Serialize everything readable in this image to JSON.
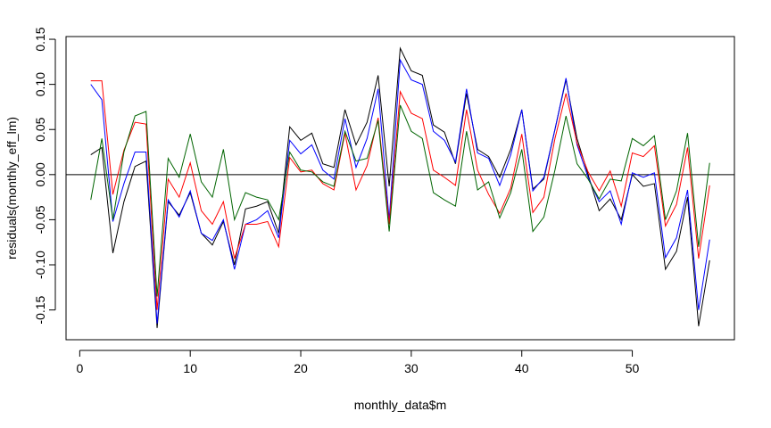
{
  "chart_data": {
    "type": "line",
    "xlabel": "monthly_data$m",
    "ylabel": "residuals(monthly_eff_lm)",
    "xlim": [
      -1.24,
      59.24
    ],
    "ylim": [
      -0.183,
      0.153
    ],
    "xticks": [
      0,
      10,
      20,
      30,
      40,
      50
    ],
    "yticks": [
      -0.15,
      -0.1,
      -0.05,
      0.0,
      0.05,
      0.1,
      0.15
    ],
    "xtick_labels": [
      "0",
      "10",
      "20",
      "30",
      "40",
      "50"
    ],
    "ytick_labels": [
      "-0.15",
      "-0.10",
      "-0.05",
      "0.00",
      "0.05",
      "0.10",
      "0.15"
    ],
    "reference_line": 0,
    "x": [
      1,
      2,
      3,
      4,
      5,
      6,
      7,
      8,
      9,
      10,
      11,
      12,
      13,
      14,
      15,
      16,
      17,
      18,
      19,
      20,
      21,
      22,
      23,
      24,
      25,
      26,
      27,
      28,
      29,
      30,
      31,
      32,
      33,
      34,
      35,
      36,
      37,
      38,
      39,
      40,
      41,
      42,
      43,
      44,
      45,
      46,
      47,
      48,
      49,
      50,
      51,
      52,
      53,
      54,
      55,
      56,
      57
    ],
    "series": [
      {
        "color": "#000000",
        "values": [
          0.022,
          0.03,
          -0.087,
          -0.03,
          0.009,
          0.015,
          -0.17,
          -0.03,
          -0.045,
          -0.02,
          -0.065,
          -0.078,
          -0.052,
          -0.1,
          -0.038,
          -0.035,
          -0.03,
          -0.065,
          0.053,
          0.038,
          0.046,
          0.012,
          0.008,
          0.072,
          0.033,
          0.058,
          0.11,
          -0.013,
          0.14,
          0.115,
          0.11,
          0.055,
          0.047,
          0.012,
          0.09,
          0.028,
          0.02,
          -0.003,
          0.028,
          0.072,
          -0.016,
          -0.005,
          0.05,
          0.105,
          0.04,
          0.0,
          -0.04,
          -0.027,
          -0.05,
          0.0,
          -0.013,
          -0.01,
          -0.105,
          -0.085,
          -0.025,
          -0.168,
          -0.095
        ]
      },
      {
        "color": "#0000ff",
        "values": [
          0.1,
          0.083,
          -0.052,
          -0.01,
          0.025,
          0.025,
          -0.165,
          -0.028,
          -0.047,
          -0.018,
          -0.065,
          -0.073,
          -0.05,
          -0.105,
          -0.055,
          -0.05,
          -0.04,
          -0.07,
          0.038,
          0.023,
          0.033,
          0.005,
          -0.005,
          0.062,
          0.008,
          0.04,
          0.095,
          -0.05,
          0.127,
          0.105,
          0.1,
          0.048,
          0.038,
          0.014,
          0.095,
          0.024,
          0.018,
          -0.012,
          0.022,
          0.072,
          -0.018,
          -0.003,
          0.05,
          0.107,
          0.033,
          -0.003,
          -0.03,
          -0.018,
          -0.055,
          0.002,
          -0.003,
          0.002,
          -0.092,
          -0.07,
          -0.017,
          -0.15,
          -0.072
        ]
      },
      {
        "color": "#ff0000",
        "values": [
          0.104,
          0.104,
          -0.022,
          0.027,
          0.058,
          0.056,
          -0.15,
          -0.005,
          -0.025,
          0.013,
          -0.04,
          -0.055,
          -0.03,
          -0.093,
          -0.055,
          -0.055,
          -0.052,
          -0.08,
          0.019,
          0.003,
          0.005,
          -0.01,
          -0.017,
          0.046,
          -0.017,
          0.01,
          0.063,
          -0.055,
          0.092,
          0.068,
          0.062,
          0.005,
          -0.003,
          -0.012,
          0.072,
          0.005,
          -0.022,
          -0.043,
          -0.015,
          0.045,
          -0.042,
          -0.025,
          0.04,
          0.09,
          0.035,
          0.003,
          -0.018,
          0.004,
          -0.035,
          0.024,
          0.02,
          0.032,
          -0.057,
          -0.033,
          0.03,
          -0.093,
          -0.012
        ]
      },
      {
        "color": "#006400",
        "values": [
          -0.028,
          0.04,
          -0.05,
          0.025,
          0.065,
          0.07,
          -0.135,
          0.018,
          -0.003,
          0.045,
          -0.008,
          -0.025,
          0.028,
          -0.05,
          -0.02,
          -0.025,
          -0.028,
          -0.05,
          0.025,
          0.005,
          0.003,
          -0.008,
          -0.013,
          0.048,
          0.015,
          0.018,
          0.06,
          -0.063,
          0.077,
          0.048,
          0.04,
          -0.02,
          -0.028,
          -0.035,
          0.048,
          -0.017,
          -0.008,
          -0.048,
          -0.02,
          0.028,
          -0.063,
          -0.047,
          0.005,
          0.065,
          0.012,
          -0.005,
          -0.027,
          -0.005,
          -0.007,
          0.04,
          0.032,
          0.043,
          -0.05,
          -0.018,
          0.046,
          -0.08,
          0.013
        ]
      }
    ]
  }
}
